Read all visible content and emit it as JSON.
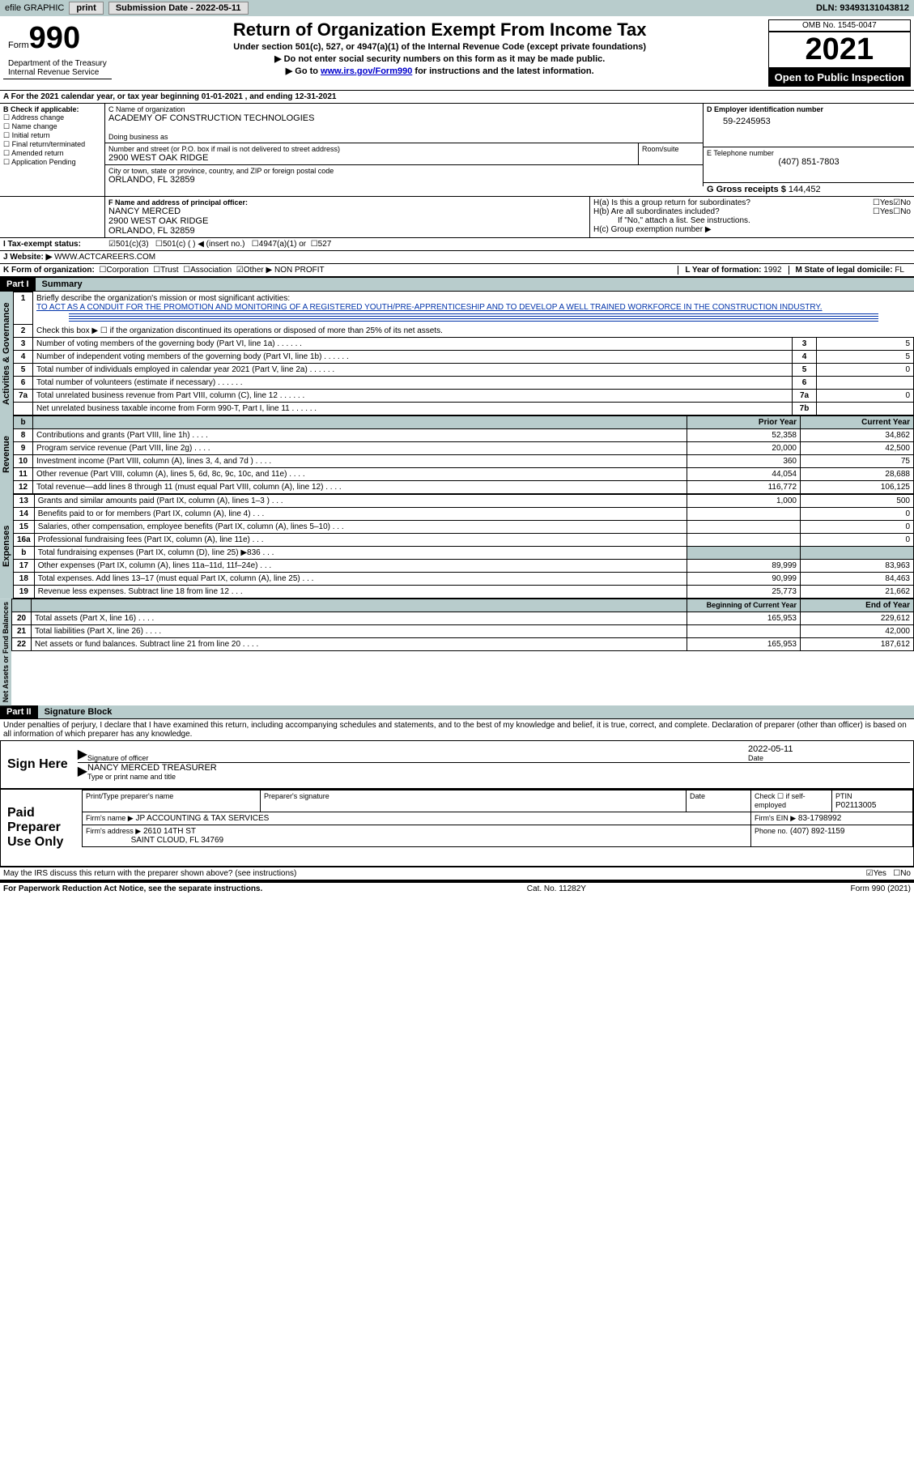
{
  "topbar": {
    "efile": "efile GRAPHIC",
    "print": "print",
    "submission": "Submission Date - 2022-05-11",
    "dln": "DLN: 93493131043812"
  },
  "header": {
    "form_label": "Form",
    "form_no": "990",
    "dept": "Department of the Treasury\nInternal Revenue Service",
    "title": "Return of Organization Exempt From Income Tax",
    "subtitle": "Under section 501(c), 527, or 4947(a)(1) of the Internal Revenue Code (except private foundations)",
    "note1": "▶ Do not enter social security numbers on this form as it may be made public.",
    "note2_pre": "▶ Go to ",
    "note2_link": "www.irs.gov/Form990",
    "note2_post": " for instructions and the latest information.",
    "omb": "OMB No. 1545-0047",
    "year": "2021",
    "inspection": "Open to Public Inspection"
  },
  "period": {
    "text": "A For the 2021 calendar year, or tax year beginning 01-01-2021    , and ending 12-31-2021"
  },
  "sectionB": {
    "label": "B Check if applicable:",
    "items": [
      "Address change",
      "Name change",
      "Initial return",
      "Final return/terminated",
      "Amended return",
      "Application Pending"
    ]
  },
  "sectionC": {
    "name_label": "C Name of organization",
    "name": "ACADEMY OF CONSTRUCTION TECHNOLOGIES",
    "dba_label": "Doing business as",
    "addr_label": "Number and street (or P.O. box if mail is not delivered to street address)",
    "addr": "2900 WEST OAK RIDGE",
    "room_label": "Room/suite",
    "city_label": "City or town, state or province, country, and ZIP or foreign postal code",
    "city": "ORLANDO, FL  32859"
  },
  "sectionD": {
    "label": "D Employer identification number",
    "value": "59-2245953"
  },
  "sectionE": {
    "label": "E Telephone number",
    "value": "(407) 851-7803"
  },
  "sectionG": {
    "label": "G Gross receipts $",
    "value": "144,452"
  },
  "sectionF": {
    "label": "F Name and address of principal officer:",
    "name": "NANCY MERCED",
    "addr": "2900 WEST OAK RIDGE",
    "city": "ORLANDO, FL  32859"
  },
  "sectionH": {
    "a": "H(a)  Is this a group return for subordinates?",
    "b": "H(b)  Are all subordinates included?",
    "note": "If \"No,\" attach a list. See instructions.",
    "c": "H(c)  Group exemption number ▶",
    "yes": "Yes",
    "no": "No"
  },
  "sectionI": {
    "label": "I  Tax-exempt status:",
    "opt1": "501(c)(3)",
    "opt2": "501(c) (  ) ◀ (insert no.)",
    "opt3": "4947(a)(1) or",
    "opt4": "527"
  },
  "sectionJ": {
    "label": "J Website: ▶",
    "value": "WWW.ACTCAREERS.COM"
  },
  "sectionK": {
    "label": "K Form of organization:",
    "corp": "Corporation",
    "trust": "Trust",
    "assoc": "Association",
    "other": "Other ▶",
    "other_val": "NON PROFIT"
  },
  "sectionL": {
    "label": "L Year of formation:",
    "value": "1992"
  },
  "sectionM": {
    "label": "M State of legal domicile:",
    "value": "FL"
  },
  "part1": {
    "header": "Part I",
    "title": "Summary",
    "side1": "Activities & Governance",
    "side2": "Revenue",
    "side3": "Expenses",
    "side4": "Net Assets or Fund Balances",
    "line1_label": "Briefly describe the organization's mission or most significant activities:",
    "line1_text": "TO ACT AS A CONDUIT FOR THE PROMOTION AND MONITORING OF A REGISTERED YOUTH/PRE-APPRENTICESHIP AND TO DEVELOP A WELL TRAINED WORKFORCE IN THE CONSTRUCTION INDUSTRY.",
    "line2": "Check this box ▶ ☐  if the organization discontinued its operations or disposed of more than 25% of its net assets.",
    "rows_gov": [
      {
        "n": "3",
        "label": "Number of voting members of the governing body (Part VI, line 1a)",
        "box": "3",
        "val": "5"
      },
      {
        "n": "4",
        "label": "Number of independent voting members of the governing body (Part VI, line 1b)",
        "box": "4",
        "val": "5"
      },
      {
        "n": "5",
        "label": "Total number of individuals employed in calendar year 2021 (Part V, line 2a)",
        "box": "5",
        "val": "0"
      },
      {
        "n": "6",
        "label": "Total number of volunteers (estimate if necessary)",
        "box": "6",
        "val": ""
      },
      {
        "n": "7a",
        "label": "Total unrelated business revenue from Part VIII, column (C), line 12",
        "box": "7a",
        "val": "0"
      },
      {
        "n": "",
        "label": "Net unrelated business taxable income from Form 990-T, Part I, line 11",
        "box": "7b",
        "val": ""
      }
    ],
    "col_prior": "Prior Year",
    "col_current": "Current Year",
    "col_begin": "Beginning of Current Year",
    "col_end": "End of Year",
    "rows_rev": [
      {
        "n": "8",
        "label": "Contributions and grants (Part VIII, line 1h)",
        "p": "52,358",
        "c": "34,862"
      },
      {
        "n": "9",
        "label": "Program service revenue (Part VIII, line 2g)",
        "p": "20,000",
        "c": "42,500"
      },
      {
        "n": "10",
        "label": "Investment income (Part VIII, column (A), lines 3, 4, and 7d )",
        "p": "360",
        "c": "75"
      },
      {
        "n": "11",
        "label": "Other revenue (Part VIII, column (A), lines 5, 6d, 8c, 9c, 10c, and 11e)",
        "p": "44,054",
        "c": "28,688"
      },
      {
        "n": "12",
        "label": "Total revenue—add lines 8 through 11 (must equal Part VIII, column (A), line 12)",
        "p": "116,772",
        "c": "106,125"
      }
    ],
    "rows_exp": [
      {
        "n": "13",
        "label": "Grants and similar amounts paid (Part IX, column (A), lines 1–3 )",
        "p": "1,000",
        "c": "500"
      },
      {
        "n": "14",
        "label": "Benefits paid to or for members (Part IX, column (A), line 4)",
        "p": "",
        "c": "0"
      },
      {
        "n": "15",
        "label": "Salaries, other compensation, employee benefits (Part IX, column (A), lines 5–10)",
        "p": "",
        "c": "0"
      },
      {
        "n": "16a",
        "label": "Professional fundraising fees (Part IX, column (A), line 11e)",
        "p": "",
        "c": "0"
      },
      {
        "n": "b",
        "label": "Total fundraising expenses (Part IX, column (D), line 25) ▶836",
        "p": "",
        "c": "",
        "shaded": true
      },
      {
        "n": "17",
        "label": "Other expenses (Part IX, column (A), lines 11a–11d, 11f–24e)",
        "p": "89,999",
        "c": "83,963"
      },
      {
        "n": "18",
        "label": "Total expenses. Add lines 13–17 (must equal Part IX, column (A), line 25)",
        "p": "90,999",
        "c": "84,463"
      },
      {
        "n": "19",
        "label": "Revenue less expenses. Subtract line 18 from line 12",
        "p": "25,773",
        "c": "21,662"
      }
    ],
    "rows_net": [
      {
        "n": "20",
        "label": "Total assets (Part X, line 16)",
        "p": "165,953",
        "c": "229,612"
      },
      {
        "n": "21",
        "label": "Total liabilities (Part X, line 26)",
        "p": "",
        "c": "42,000"
      },
      {
        "n": "22",
        "label": "Net assets or fund balances. Subtract line 21 from line 20",
        "p": "165,953",
        "c": "187,612"
      }
    ]
  },
  "part2": {
    "header": "Part II",
    "title": "Signature Block",
    "declaration": "Under penalties of perjury, I declare that I have examined this return, including accompanying schedules and statements, and to the best of my knowledge and belief, it is true, correct, and complete. Declaration of preparer (other than officer) is based on all information of which preparer has any knowledge.",
    "sign_here": "Sign Here",
    "sig_officer": "Signature of officer",
    "sig_date": "2022-05-11",
    "date_label": "Date",
    "officer_name": "NANCY MERCED  TREASURER",
    "type_name": "Type or print name and title",
    "paid": "Paid Preparer Use Only",
    "print_name_label": "Print/Type preparer's name",
    "prep_sig_label": "Preparer's signature",
    "check_if": "Check ☐ if self-employed",
    "ptin_label": "PTIN",
    "ptin": "P02113005",
    "firm_name_label": "Firm's name    ▶",
    "firm_name": "JP ACCOUNTING & TAX SERVICES",
    "firm_ein_label": "Firm's EIN ▶",
    "firm_ein": "83-1798992",
    "firm_addr_label": "Firm's address ▶",
    "firm_addr1": "2610 14TH ST",
    "firm_addr2": "SAINT CLOUD, FL  34769",
    "phone_label": "Phone no.",
    "phone": "(407) 892-1159",
    "discuss": "May the IRS discuss this return with the preparer shown above? (see instructions)",
    "yes": "Yes",
    "no": "No"
  },
  "footer": {
    "left": "For Paperwork Reduction Act Notice, see the separate instructions.",
    "mid": "Cat. No. 11282Y",
    "right": "Form 990 (2021)"
  }
}
